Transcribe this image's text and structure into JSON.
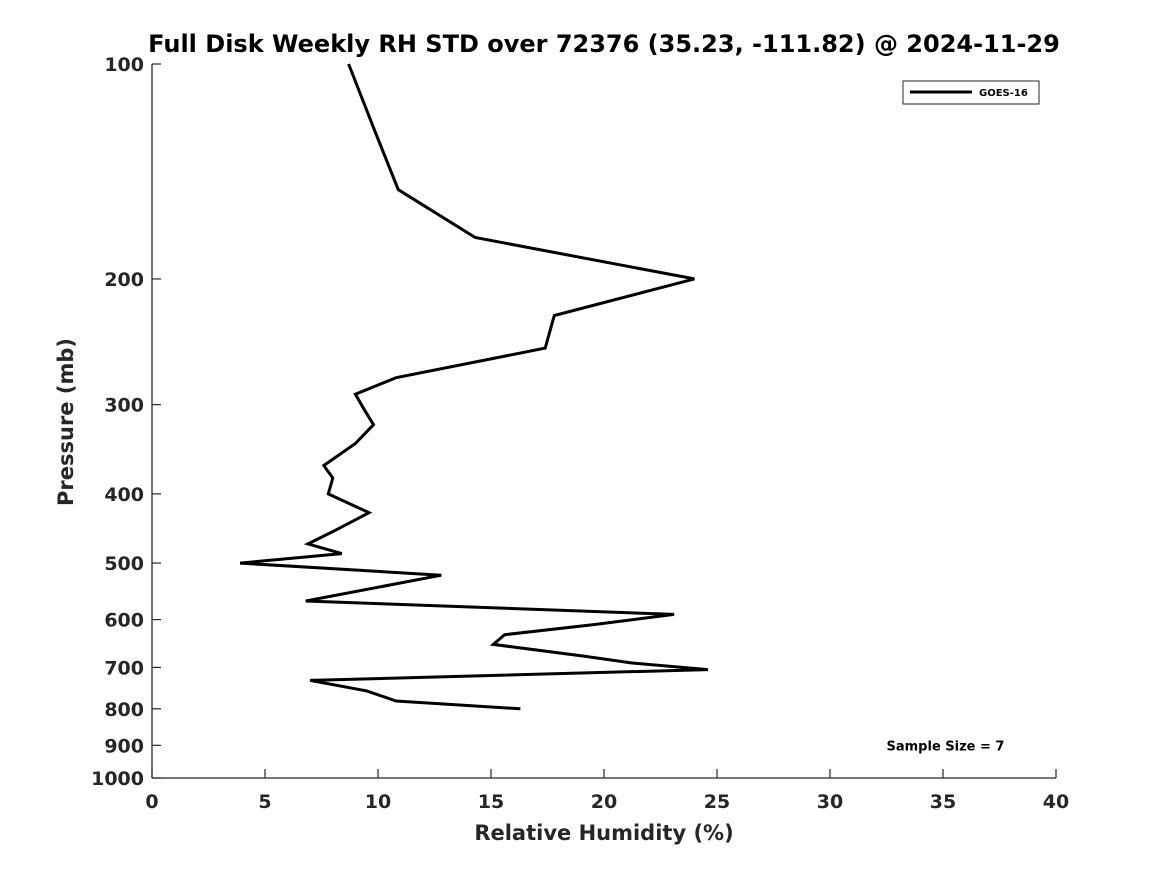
{
  "chart_data": {
    "type": "line",
    "title": "Full Disk Weekly RH STD over 72376 (35.23, -111.82) @ 2024-11-29",
    "xlabel": "Relative Humidity (%)",
    "ylabel": "Pressure (mb)",
    "xlim": [
      0,
      40
    ],
    "ylim": [
      100,
      1000
    ],
    "y_scale": "log",
    "y_inverted": true,
    "x_ticks": [
      0,
      5,
      10,
      15,
      20,
      25,
      30,
      35,
      40
    ],
    "y_ticks": [
      100,
      200,
      300,
      400,
      500,
      600,
      700,
      800,
      900,
      1000
    ],
    "grid": false,
    "legend_position": "top-right",
    "series": [
      {
        "name": "GOES-16",
        "color": "#000000",
        "points": [
          {
            "x": 8.7,
            "p": 100
          },
          {
            "x": 9.9,
            "p": 125
          },
          {
            "x": 10.9,
            "p": 150
          },
          {
            "x": 14.3,
            "p": 175
          },
          {
            "x": 24.0,
            "p": 200
          },
          {
            "x": 17.8,
            "p": 225
          },
          {
            "x": 17.4,
            "p": 250
          },
          {
            "x": 10.8,
            "p": 275
          },
          {
            "x": 9.0,
            "p": 290
          },
          {
            "x": 9.4,
            "p": 305
          },
          {
            "x": 9.8,
            "p": 320
          },
          {
            "x": 9.0,
            "p": 340
          },
          {
            "x": 7.6,
            "p": 365
          },
          {
            "x": 8.0,
            "p": 380
          },
          {
            "x": 7.8,
            "p": 400
          },
          {
            "x": 9.6,
            "p": 425
          },
          {
            "x": 8.1,
            "p": 450
          },
          {
            "x": 6.9,
            "p": 470
          },
          {
            "x": 8.4,
            "p": 485
          },
          {
            "x": 3.9,
            "p": 500
          },
          {
            "x": 12.8,
            "p": 520
          },
          {
            "x": 6.8,
            "p": 565
          },
          {
            "x": 23.1,
            "p": 590
          },
          {
            "x": 19.5,
            "p": 610
          },
          {
            "x": 15.6,
            "p": 630
          },
          {
            "x": 15.1,
            "p": 650
          },
          {
            "x": 19.1,
            "p": 675
          },
          {
            "x": 21.2,
            "p": 690
          },
          {
            "x": 24.6,
            "p": 705
          },
          {
            "x": 7.0,
            "p": 730
          },
          {
            "x": 9.5,
            "p": 755
          },
          {
            "x": 10.8,
            "p": 780
          },
          {
            "x": 16.3,
            "p": 800
          }
        ]
      }
    ],
    "annotations": [
      {
        "text": "Sample Size = 7",
        "x": 32.5,
        "p": 900
      }
    ]
  }
}
